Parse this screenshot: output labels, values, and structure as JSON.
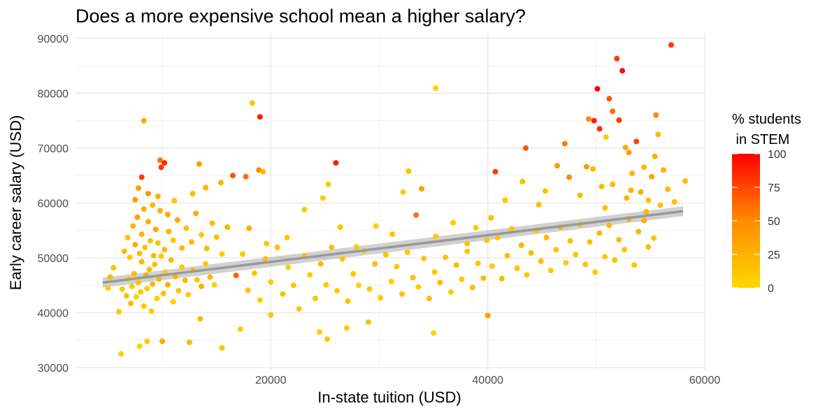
{
  "chart_data": {
    "type": "scatter",
    "title": "Does a more expensive school mean a higher salary?",
    "xlabel": "In-state tuition (USD)",
    "ylabel": "Early career salary (USD)",
    "xlim": [
      2000,
      60000
    ],
    "ylim": [
      29500,
      91000
    ],
    "x_ticks": [
      20000,
      40000,
      60000
    ],
    "x_tick_labels": [
      "20000",
      "40000",
      "60000"
    ],
    "y_ticks": [
      30000,
      40000,
      50000,
      60000,
      70000,
      80000,
      90000
    ],
    "y_tick_labels": [
      "30000",
      "40000",
      "50000",
      "60000",
      "70000",
      "80000",
      "90000"
    ],
    "grid": true,
    "legend": {
      "title_lines": [
        "% students",
        " in STEM"
      ],
      "labels": [
        "100",
        "75",
        "50",
        "25",
        "0"
      ],
      "values": [
        100,
        75,
        50,
        25,
        0
      ],
      "colors": [
        "#FF0000",
        "#FF8C00",
        "#FFD700"
      ],
      "placement": "right"
    },
    "trend_line": {
      "x": [
        4500,
        58000
      ],
      "y": [
        45500,
        58500
      ],
      "band": 900,
      "color": "#999999"
    },
    "points": [
      [
        6200,
        32500,
        8
      ],
      [
        7900,
        33900,
        5
      ],
      [
        8600,
        34800,
        10
      ],
      [
        10000,
        34800,
        30
      ],
      [
        12500,
        34600,
        20
      ],
      [
        15500,
        33600,
        12
      ],
      [
        17200,
        37000,
        8
      ],
      [
        24500,
        36500,
        6
      ],
      [
        25200,
        35200,
        12
      ],
      [
        27000,
        37200,
        10
      ],
      [
        29000,
        38300,
        15
      ],
      [
        35000,
        36300,
        5
      ],
      [
        40000,
        39500,
        40
      ],
      [
        13500,
        38900,
        20
      ],
      [
        20000,
        39600,
        10
      ],
      [
        5000,
        44500,
        10
      ],
      [
        5200,
        46500,
        20
      ],
      [
        5500,
        48200,
        15
      ],
      [
        6000,
        40200,
        12
      ],
      [
        6300,
        44300,
        8
      ],
      [
        6700,
        43100,
        14
      ],
      [
        6900,
        46200,
        6
      ],
      [
        7100,
        41700,
        18
      ],
      [
        7200,
        44800,
        10
      ],
      [
        7400,
        47100,
        20
      ],
      [
        7600,
        42900,
        5
      ],
      [
        7800,
        45500,
        16
      ],
      [
        8000,
        43800,
        9
      ],
      [
        8100,
        49300,
        22
      ],
      [
        8300,
        41200,
        12
      ],
      [
        8500,
        46800,
        30
      ],
      [
        8600,
        44400,
        6
      ],
      [
        8800,
        47900,
        18
      ],
      [
        9000,
        40300,
        10
      ],
      [
        9100,
        45200,
        25
      ],
      [
        9300,
        48800,
        14
      ],
      [
        9500,
        42600,
        8
      ],
      [
        9700,
        46100,
        20
      ],
      [
        9900,
        50300,
        12
      ],
      [
        10100,
        43500,
        16
      ],
      [
        10300,
        47400,
        10
      ],
      [
        10500,
        45100,
        28
      ],
      [
        10800,
        49600,
        18
      ],
      [
        11000,
        42000,
        6
      ],
      [
        11200,
        46600,
        22
      ],
      [
        11500,
        44000,
        14
      ],
      [
        11800,
        48300,
        10
      ],
      [
        12100,
        45900,
        20
      ],
      [
        12400,
        43300,
        8
      ],
      [
        12800,
        47800,
        16
      ],
      [
        13200,
        46000,
        12
      ],
      [
        13600,
        44800,
        24
      ],
      [
        14000,
        48900,
        10
      ],
      [
        14400,
        46500,
        18
      ],
      [
        14800,
        45100,
        6
      ],
      [
        6500,
        51200,
        20
      ],
      [
        6800,
        53700,
        15
      ],
      [
        7000,
        50100,
        10
      ],
      [
        7300,
        55800,
        25
      ],
      [
        7500,
        52400,
        30
      ],
      [
        7700,
        57400,
        35
      ],
      [
        7900,
        50800,
        18
      ],
      [
        8100,
        54300,
        22
      ],
      [
        8400,
        51900,
        12
      ],
      [
        8700,
        56600,
        28
      ],
      [
        8900,
        53100,
        16
      ],
      [
        9200,
        50400,
        20
      ],
      [
        9400,
        55200,
        32
      ],
      [
        9600,
        52700,
        14
      ],
      [
        9800,
        58600,
        26
      ],
      [
        10200,
        51500,
        18
      ],
      [
        10600,
        54800,
        24
      ],
      [
        11000,
        53200,
        10
      ],
      [
        11400,
        56900,
        30
      ],
      [
        11800,
        51800,
        20
      ],
      [
        12200,
        55400,
        16
      ],
      [
        12700,
        52900,
        22
      ],
      [
        13100,
        58100,
        28
      ],
      [
        13600,
        54200,
        12
      ],
      [
        14100,
        51700,
        18
      ],
      [
        14600,
        56300,
        20
      ],
      [
        15000,
        53800,
        14
      ],
      [
        15500,
        50700,
        10
      ],
      [
        16000,
        55600,
        22
      ],
      [
        7500,
        60600,
        40
      ],
      [
        7800,
        62700,
        35
      ],
      [
        8100,
        64700,
        80
      ],
      [
        8300,
        58900,
        30
      ],
      [
        8700,
        61700,
        45
      ],
      [
        9100,
        59600,
        20
      ],
      [
        9600,
        61200,
        25
      ],
      [
        10500,
        57900,
        30
      ],
      [
        8300,
        75000,
        30
      ],
      [
        9800,
        67800,
        60
      ],
      [
        10200,
        67300,
        85
      ],
      [
        9900,
        66500,
        80
      ],
      [
        13400,
        67100,
        40
      ],
      [
        15400,
        63700,
        25
      ],
      [
        16500,
        65000,
        70
      ],
      [
        17700,
        64800,
        60
      ],
      [
        18300,
        78200,
        15
      ],
      [
        19000,
        75700,
        90
      ],
      [
        18900,
        66000,
        50
      ],
      [
        19300,
        65700,
        20
      ],
      [
        14000,
        62800,
        25
      ],
      [
        12800,
        61700,
        20
      ],
      [
        11100,
        60400,
        15
      ],
      [
        16800,
        46800,
        65
      ],
      [
        17400,
        50700,
        10
      ],
      [
        17900,
        44100,
        15
      ],
      [
        18500,
        47200,
        12
      ],
      [
        19000,
        42300,
        8
      ],
      [
        19500,
        49800,
        20
      ],
      [
        20000,
        45600,
        10
      ],
      [
        20600,
        51900,
        14
      ],
      [
        21100,
        43400,
        18
      ],
      [
        21600,
        48300,
        6
      ],
      [
        22100,
        45000,
        12
      ],
      [
        22600,
        40700,
        10
      ],
      [
        23100,
        50300,
        16
      ],
      [
        23600,
        46900,
        8
      ],
      [
        24100,
        42600,
        14
      ],
      [
        24600,
        48900,
        20
      ],
      [
        25100,
        45100,
        10
      ],
      [
        25600,
        51900,
        18
      ],
      [
        26100,
        44000,
        8
      ],
      [
        26600,
        49800,
        12
      ],
      [
        27100,
        42100,
        16
      ],
      [
        27600,
        47100,
        10
      ],
      [
        28100,
        45000,
        6
      ],
      [
        28600,
        51300,
        14
      ],
      [
        29100,
        44300,
        12
      ],
      [
        29600,
        48900,
        20
      ],
      [
        30100,
        42700,
        10
      ],
      [
        30600,
        50600,
        16
      ],
      [
        31100,
        45700,
        8
      ],
      [
        31600,
        48400,
        12
      ],
      [
        32100,
        43400,
        14
      ],
      [
        32600,
        51000,
        10
      ],
      [
        33100,
        46400,
        18
      ],
      [
        33600,
        44700,
        8
      ],
      [
        34100,
        49900,
        12
      ],
      [
        34600,
        42600,
        16
      ],
      [
        35100,
        47400,
        10
      ],
      [
        35600,
        45500,
        20
      ],
      [
        36100,
        50100,
        14
      ],
      [
        36600,
        43800,
        8
      ],
      [
        37100,
        48700,
        18
      ],
      [
        37600,
        46100,
        10
      ],
      [
        38100,
        51200,
        12
      ],
      [
        38600,
        44600,
        16
      ],
      [
        39100,
        49000,
        10
      ],
      [
        39600,
        46300,
        20
      ],
      [
        18000,
        55400,
        30
      ],
      [
        19600,
        52600,
        12
      ],
      [
        21500,
        53700,
        10
      ],
      [
        23100,
        58800,
        10
      ],
      [
        24800,
        60900,
        8
      ],
      [
        25300,
        63400,
        10
      ],
      [
        26400,
        55600,
        12
      ],
      [
        27900,
        52000,
        8
      ],
      [
        29700,
        55800,
        6
      ],
      [
        31200,
        54300,
        14
      ],
      [
        32200,
        62000,
        10
      ],
      [
        32700,
        65800,
        15
      ],
      [
        33400,
        57800,
        60
      ],
      [
        33900,
        62600,
        35
      ],
      [
        35200,
        53900,
        10
      ],
      [
        36800,
        56400,
        8
      ],
      [
        38100,
        52600,
        14
      ],
      [
        38900,
        55500,
        10
      ],
      [
        39900,
        53200,
        12
      ],
      [
        40300,
        57300,
        18
      ],
      [
        26000,
        67300,
        90
      ],
      [
        35200,
        80900,
        5
      ],
      [
        40400,
        48500,
        10
      ],
      [
        40900,
        53700,
        12
      ],
      [
        41300,
        46200,
        20
      ],
      [
        41800,
        50400,
        16
      ],
      [
        42200,
        55300,
        10
      ],
      [
        42700,
        48100,
        14
      ],
      [
        43100,
        52300,
        22
      ],
      [
        43600,
        46900,
        12
      ],
      [
        44000,
        50900,
        18
      ],
      [
        44500,
        55000,
        10
      ],
      [
        44900,
        49400,
        16
      ],
      [
        45400,
        53700,
        20
      ],
      [
        45800,
        47700,
        12
      ],
      [
        46300,
        51500,
        14
      ],
      [
        46700,
        55600,
        24
      ],
      [
        47200,
        49100,
        10
      ],
      [
        47600,
        53100,
        18
      ],
      [
        48100,
        50600,
        12
      ],
      [
        48500,
        56100,
        20
      ],
      [
        49000,
        48800,
        14
      ],
      [
        49400,
        52900,
        16
      ],
      [
        49900,
        47400,
        10
      ],
      [
        50300,
        54500,
        22
      ],
      [
        50800,
        50200,
        12
      ],
      [
        51200,
        55900,
        18
      ],
      [
        51700,
        49600,
        14
      ],
      [
        52100,
        53300,
        20
      ],
      [
        52600,
        51500,
        16
      ],
      [
        53000,
        57100,
        28
      ],
      [
        53500,
        48700,
        10
      ],
      [
        53900,
        54800,
        22
      ],
      [
        54400,
        56800,
        30
      ],
      [
        54800,
        52000,
        18
      ],
      [
        55300,
        53600,
        14
      ],
      [
        40700,
        65700,
        80
      ],
      [
        41600,
        60500,
        10
      ],
      [
        43200,
        63900,
        20
      ],
      [
        43500,
        70000,
        70
      ],
      [
        44700,
        59700,
        15
      ],
      [
        45300,
        62200,
        14
      ],
      [
        46400,
        66800,
        40
      ],
      [
        47100,
        70800,
        55
      ],
      [
        47500,
        64700,
        50
      ],
      [
        48500,
        61400,
        20
      ],
      [
        49100,
        66600,
        40
      ],
      [
        49300,
        75300,
        50
      ],
      [
        49700,
        66200,
        20
      ],
      [
        49800,
        75000,
        90
      ],
      [
        50100,
        80800,
        100
      ],
      [
        50300,
        73500,
        85
      ],
      [
        50500,
        63000,
        20
      ],
      [
        50900,
        72000,
        8
      ],
      [
        51200,
        79000,
        70
      ],
      [
        51500,
        76700,
        60
      ],
      [
        51900,
        86300,
        80
      ],
      [
        52100,
        75100,
        80
      ],
      [
        52400,
        84100,
        95
      ],
      [
        52700,
        70100,
        30
      ],
      [
        53000,
        69200,
        40
      ],
      [
        53300,
        65400,
        25
      ],
      [
        53700,
        71200,
        75
      ],
      [
        54100,
        62000,
        30
      ],
      [
        54400,
        66500,
        20
      ],
      [
        54800,
        60500,
        15
      ],
      [
        55100,
        64800,
        35
      ],
      [
        55400,
        68500,
        25
      ],
      [
        55500,
        76000,
        50
      ],
      [
        55700,
        72500,
        20
      ],
      [
        56200,
        66000,
        25
      ],
      [
        56600,
        62500,
        20
      ],
      [
        56900,
        88800,
        80
      ],
      [
        57200,
        60200,
        15
      ],
      [
        58200,
        64000,
        20
      ],
      [
        53200,
        62300,
        25
      ],
      [
        51500,
        63400,
        20
      ],
      [
        50800,
        59100,
        18
      ],
      [
        52800,
        60900,
        22
      ],
      [
        54600,
        58400,
        20
      ],
      [
        55900,
        59600,
        16
      ]
    ]
  }
}
